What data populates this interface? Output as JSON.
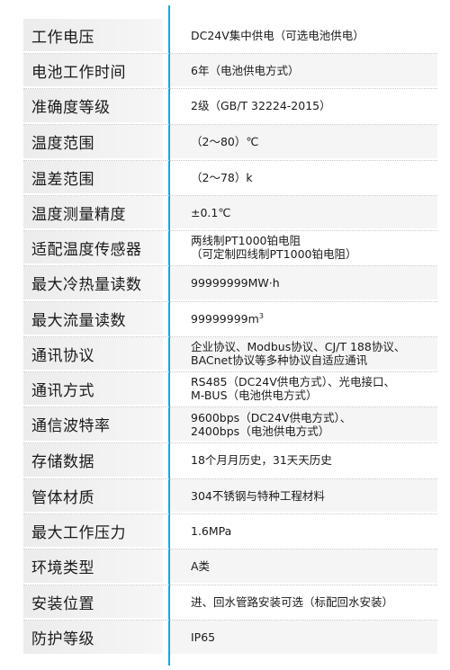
{
  "specs": [
    {
      "label": "工作电压",
      "value": [
        "DC24V集中供电（可选电池供电）"
      ]
    },
    {
      "label": "电池工作时间",
      "value": [
        "6年（电池供电方式）"
      ]
    },
    {
      "label": "准确度等级",
      "value": [
        "2级（GB/T 32224-2015）"
      ]
    },
    {
      "label": "温度范围",
      "value": [
        "（2～80）℃"
      ]
    },
    {
      "label": "温差范围",
      "value": [
        "（2～78）k"
      ]
    },
    {
      "label": "温度测量精度",
      "value": [
        "±0.1℃"
      ]
    },
    {
      "label": "适配温度传感器",
      "value": [
        "两线制PT1000铂电阻",
        "（可定制四线制PT1000铂电阻）"
      ]
    },
    {
      "label": "最大冷热量读数",
      "value": [
        "99999999MW·h"
      ]
    },
    {
      "label": "最大流量读数",
      "value": [
        "99999999m"
      ],
      "sup": "3"
    },
    {
      "label": "通讯协议",
      "value": [
        "企业协议、Modbus协议、CJ/T 188协议、",
        "BACnet协议等多种协议自适应通讯"
      ]
    },
    {
      "label": "通讯方式",
      "value": [
        "RS485（DC24V供电方式）、光电接口、",
        "M-BUS（电池供电方式）"
      ]
    },
    {
      "label": "通信波特率",
      "value": [
        "9600bps（DC24V供电方式）、",
        "2400bps（电池供电方式）"
      ]
    },
    {
      "label": "存储数据",
      "value": [
        "18个月月历史，31天天历史"
      ]
    },
    {
      "label": "管体材质",
      "value": [
        "304不锈钢与特种工程材料"
      ]
    },
    {
      "label": "最大工作压力",
      "value": [
        "1.6MPa"
      ]
    },
    {
      "label": "环境类型",
      "value": [
        "A类"
      ]
    },
    {
      "label": "安装位置",
      "value": [
        "进、回水管路安装可选（标配回水安装）"
      ]
    },
    {
      "label": "防护等级",
      "value": [
        "IP65"
      ]
    }
  ],
  "colors": {
    "divider": "#1ca3d7",
    "label_bg": "#ececec",
    "alt_value_bg": "#f5f5f5",
    "text": "#1a1a1a"
  }
}
